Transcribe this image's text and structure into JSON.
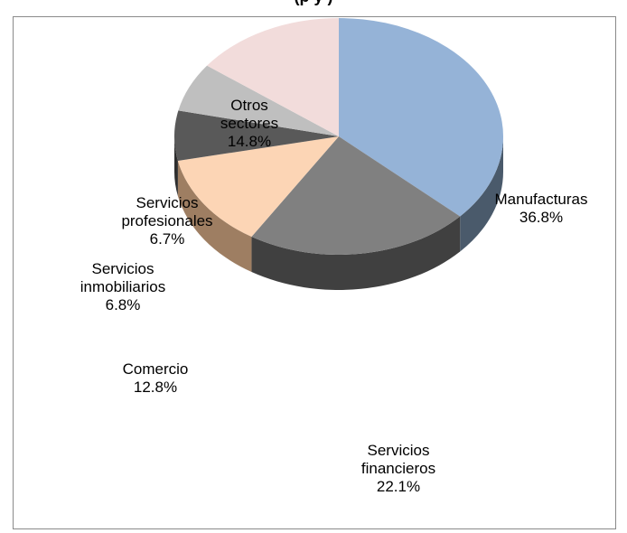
{
  "chart_title_partial": "(p",
  "chart_title_partial_2": "y     )",
  "chart_data": {
    "type": "pie",
    "title": "",
    "three_d": true,
    "slices": [
      {
        "label": [
          "Manufacturas"
        ],
        "value": 36.8,
        "value_text": "36.8%",
        "color": "#95B3D7",
        "side_color": "#4A5A6B"
      },
      {
        "label": [
          "Servicios",
          "financieros"
        ],
        "value": 22.1,
        "value_text": "22.1%",
        "color": "#808080",
        "side_color": "#404040"
      },
      {
        "label": [
          "Comercio"
        ],
        "value": 12.8,
        "value_text": "12.8%",
        "color": "#FCD5B5",
        "side_color": "#9E7E62"
      },
      {
        "label": [
          "Servicios",
          "inmobiliarios"
        ],
        "value": 6.8,
        "value_text": "6.8%",
        "color": "#595959",
        "side_color": "#2E2E2E"
      },
      {
        "label": [
          "Servicios",
          "profesionales"
        ],
        "value": 6.7,
        "value_text": "6.7%",
        "color": "#BFBFBF",
        "side_color": "#6E6E6E"
      },
      {
        "label": [
          "Otros",
          "sectores"
        ],
        "value": 14.8,
        "value_text": "14.8%",
        "color": "#F2DCDB",
        "side_color": "#9A8584"
      }
    ]
  }
}
